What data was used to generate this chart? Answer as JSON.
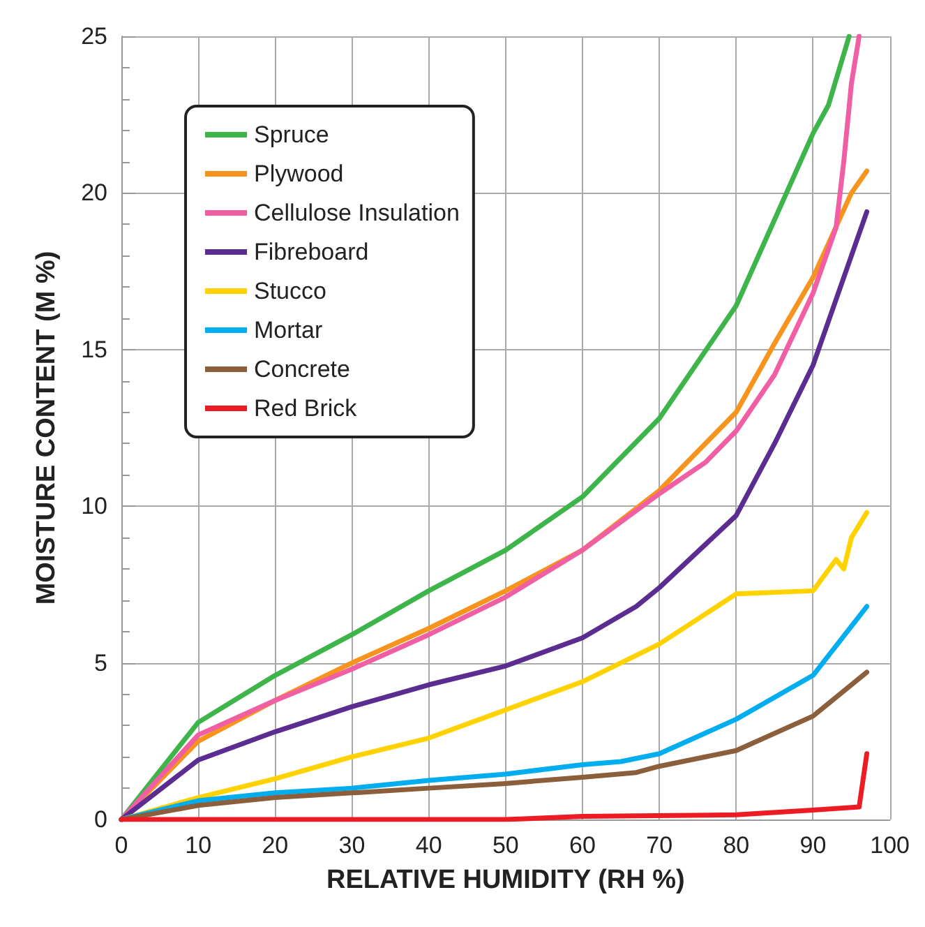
{
  "chart_data": {
    "type": "line",
    "xlabel": "RELATIVE HUMIDITY (RH %)",
    "ylabel": "MOISTURE CONTENT (M %)",
    "xlim": [
      0,
      100
    ],
    "xticks": [
      0,
      10,
      20,
      30,
      40,
      50,
      60,
      70,
      80,
      90,
      100
    ],
    "ylim": [
      0,
      25
    ],
    "yticks": [
      0,
      5,
      10,
      15,
      20,
      25
    ],
    "grid": true,
    "legend": "top left",
    "marker": "none",
    "line_style": "solid",
    "series": [
      {
        "name": "Spruce",
        "color": "#3db54a",
        "x": [
          0,
          10,
          20,
          30,
          40,
          50,
          60,
          70,
          80,
          90,
          92,
          94.7
        ],
        "values": [
          0,
          3.1,
          4.6,
          5.9,
          7.3,
          8.6,
          10.3,
          12.8,
          16.4,
          21.9,
          22.8,
          25
        ]
      },
      {
        "name": "Plywood",
        "color": "#f7941d",
        "x": [
          0,
          10,
          20,
          30,
          40,
          50,
          60,
          70,
          80,
          85,
          90,
          95,
          97
        ],
        "values": [
          0,
          2.5,
          3.8,
          5.0,
          6.1,
          7.3,
          8.6,
          10.5,
          13.0,
          15.2,
          17.3,
          20.0,
          20.7
        ]
      },
      {
        "name": "Cellulose Insulation",
        "color": "#f05fa3",
        "x": [
          0,
          10,
          20,
          30,
          40,
          50,
          60,
          70,
          76,
          80,
          85,
          90,
          93,
          94,
          95,
          96
        ],
        "values": [
          0,
          2.7,
          3.8,
          4.8,
          5.9,
          7.1,
          8.6,
          10.4,
          11.4,
          12.4,
          14.2,
          16.8,
          18.9,
          21,
          23.5,
          25
        ]
      },
      {
        "name": "Fibreboard",
        "color": "#5c2d91",
        "x": [
          0,
          10,
          20,
          30,
          40,
          50,
          60,
          67,
          70,
          80,
          85,
          90,
          91,
          97
        ],
        "values": [
          0,
          1.9,
          2.8,
          3.6,
          4.3,
          4.9,
          5.8,
          6.8,
          7.4,
          9.7,
          12,
          14.5,
          15.2,
          19.4
        ]
      },
      {
        "name": "Stucco",
        "color": "#ffd200",
        "x": [
          0,
          10,
          20,
          30,
          40,
          50,
          60,
          70,
          80,
          90,
          93,
          94,
          95,
          97
        ],
        "values": [
          0,
          0.7,
          1.3,
          2.0,
          2.6,
          3.5,
          4.4,
          5.6,
          7.2,
          7.3,
          8.3,
          8.0,
          9.0,
          9.8
        ]
      },
      {
        "name": "Mortar",
        "color": "#00aeef",
        "x": [
          0,
          10,
          20,
          30,
          40,
          50,
          60,
          65,
          70,
          80,
          90,
          97
        ],
        "values": [
          0,
          0.6,
          0.85,
          1.0,
          1.25,
          1.45,
          1.75,
          1.85,
          2.1,
          3.2,
          4.6,
          6.8
        ]
      },
      {
        "name": "Concrete",
        "color": "#8b5e3c",
        "x": [
          0,
          10,
          20,
          30,
          40,
          50,
          60,
          67,
          70,
          80,
          90,
          97
        ],
        "values": [
          0,
          0.45,
          0.7,
          0.85,
          1.0,
          1.15,
          1.35,
          1.5,
          1.7,
          2.2,
          3.3,
          4.7
        ]
      },
      {
        "name": "Red Brick",
        "color": "#ed1c24",
        "x": [
          0,
          50,
          60,
          80,
          90,
          96,
          97
        ],
        "values": [
          0,
          0,
          0.1,
          0.15,
          0.3,
          0.4,
          2.1
        ]
      }
    ]
  }
}
